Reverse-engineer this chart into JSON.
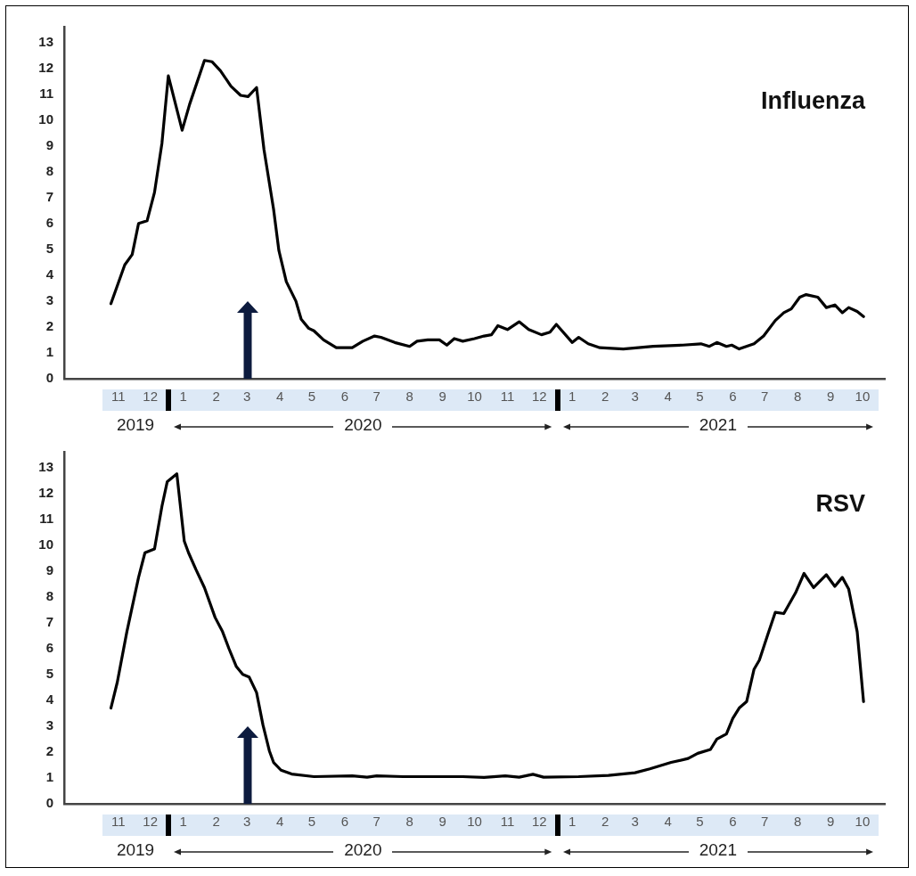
{
  "chart_data": [
    {
      "type": "line",
      "title": "Influenza",
      "color": "#000000",
      "marker": "none",
      "x": [
        "2019-11-08",
        "2019-11-21",
        "2019-11-28",
        "2019-12-04",
        "2019-12-12",
        "2019-12-19",
        "2019-12-26",
        "2020-01-01",
        "2020-01-14",
        "2020-01-21",
        "2020-02-04",
        "2020-02-11",
        "2020-02-19",
        "2020-02-29",
        "2020-03-09",
        "2020-03-16",
        "2020-03-24",
        "2020-03-31",
        "2020-04-09",
        "2020-04-14",
        "2020-04-21",
        "2020-04-30",
        "2020-05-05",
        "2020-05-12",
        "2020-05-17",
        "2020-05-26",
        "2020-06-07",
        "2020-06-22",
        "2020-07-02",
        "2020-07-13",
        "2020-07-19",
        "2020-08-01",
        "2020-08-15",
        "2020-08-22",
        "2020-09-01",
        "2020-09-12",
        "2020-09-19",
        "2020-09-26",
        "2020-10-04",
        "2020-10-15",
        "2020-10-24",
        "2020-10-31",
        "2020-11-06",
        "2020-11-15",
        "2020-11-26",
        "2020-12-05",
        "2020-12-17",
        "2020-12-25",
        "2020-12-31",
        "2021-01-15",
        "2021-01-21",
        "2021-01-30",
        "2021-02-10",
        "2021-03-04",
        "2021-04-01",
        "2021-04-29",
        "2021-05-16",
        "2021-05-24",
        "2021-05-31",
        "2021-06-09",
        "2021-06-14",
        "2021-06-21",
        "2021-07-05",
        "2021-07-14",
        "2021-07-25",
        "2021-08-02",
        "2021-08-09",
        "2021-08-17",
        "2021-08-23",
        "2021-09-03",
        "2021-09-11",
        "2021-09-19",
        "2021-09-26",
        "2021-10-02",
        "2021-10-10",
        "2021-10-16"
      ],
      "values": [
        2.9,
        4.4,
        4.8,
        6.0,
        6.1,
        7.2,
        9.1,
        11.7,
        9.6,
        10.6,
        12.3,
        12.25,
        11.9,
        11.3,
        10.95,
        10.9,
        11.25,
        8.85,
        6.55,
        4.95,
        3.75,
        3.0,
        2.3,
        1.95,
        1.85,
        1.5,
        1.2,
        1.2,
        1.45,
        1.65,
        1.6,
        1.4,
        1.25,
        1.45,
        1.5,
        1.5,
        1.3,
        1.55,
        1.45,
        1.55,
        1.65,
        1.7,
        2.05,
        1.9,
        2.2,
        1.9,
        1.7,
        1.8,
        2.1,
        1.4,
        1.6,
        1.35,
        1.2,
        1.15,
        1.25,
        1.3,
        1.35,
        1.25,
        1.4,
        1.25,
        1.3,
        1.15,
        1.35,
        1.65,
        2.25,
        2.55,
        2.7,
        3.15,
        3.25,
        3.15,
        2.75,
        2.85,
        2.55,
        2.75,
        2.6,
        2.4
      ],
      "xlim": [
        "2019-09-25",
        "2021-11-05"
      ],
      "ylim": [
        0,
        13.6
      ],
      "xticks": [
        {
          "value": "2019-11-15",
          "label": "11"
        },
        {
          "value": "2019-12-15",
          "label": "12"
        },
        {
          "value": "2020-01-15",
          "label": "1"
        },
        {
          "value": "2020-02-15",
          "label": "2"
        },
        {
          "value": "2020-03-15",
          "label": "3"
        },
        {
          "value": "2020-04-15",
          "label": "4"
        },
        {
          "value": "2020-05-15",
          "label": "5"
        },
        {
          "value": "2020-06-15",
          "label": "6"
        },
        {
          "value": "2020-07-15",
          "label": "7"
        },
        {
          "value": "2020-08-15",
          "label": "8"
        },
        {
          "value": "2020-09-15",
          "label": "9"
        },
        {
          "value": "2020-10-15",
          "label": "10"
        },
        {
          "value": "2020-11-15",
          "label": "11"
        },
        {
          "value": "2020-12-15",
          "label": "12"
        },
        {
          "value": "2021-01-15",
          "label": "1"
        },
        {
          "value": "2021-02-15",
          "label": "2"
        },
        {
          "value": "2021-03-15",
          "label": "3"
        },
        {
          "value": "2021-04-15",
          "label": "4"
        },
        {
          "value": "2021-05-15",
          "label": "5"
        },
        {
          "value": "2021-06-15",
          "label": "6"
        },
        {
          "value": "2021-07-15",
          "label": "7"
        },
        {
          "value": "2021-08-15",
          "label": "8"
        },
        {
          "value": "2021-09-15",
          "label": "9"
        },
        {
          "value": "2021-10-15",
          "label": "10"
        }
      ],
      "yticks": [
        0,
        1,
        2,
        3,
        4,
        5,
        6,
        7,
        8,
        9,
        10,
        11,
        12,
        13
      ],
      "annotations": [
        "2019",
        "2020",
        "2021"
      ]
    },
    {
      "type": "line",
      "title": "RSV",
      "color": "#000000",
      "marker": "none",
      "x": [
        "2019-11-08",
        "2019-11-14",
        "2019-11-23",
        "2019-12-04",
        "2019-12-10",
        "2019-12-19",
        "2019-12-26",
        "2019-12-31",
        "2020-01-09",
        "2020-01-16",
        "2020-01-20",
        "2020-01-27",
        "2020-02-04",
        "2020-02-14",
        "2020-02-21",
        "2020-02-27",
        "2020-03-05",
        "2020-03-11",
        "2020-03-17",
        "2020-03-24",
        "2020-03-30",
        "2020-04-05",
        "2020-04-09",
        "2020-04-16",
        "2020-04-26",
        "2020-05-17",
        "2020-06-22",
        "2020-07-06",
        "2020-07-15",
        "2020-08-09",
        "2020-09-07",
        "2020-10-04",
        "2020-10-24",
        "2020-11-13",
        "2020-11-26",
        "2020-12-09",
        "2020-12-19",
        "2021-01-21",
        "2021-02-18",
        "2021-03-15",
        "2021-03-29",
        "2021-04-18",
        "2021-05-04",
        "2021-05-13",
        "2021-05-25",
        "2021-05-31",
        "2021-06-09",
        "2021-06-15",
        "2021-06-21",
        "2021-06-28",
        "2021-07-05",
        "2021-07-10",
        "2021-07-18",
        "2021-07-25",
        "2021-08-02",
        "2021-08-13",
        "2021-08-21",
        "2021-08-30",
        "2021-09-11",
        "2021-09-19",
        "2021-09-26",
        "2021-10-02",
        "2021-10-10",
        "2021-10-16"
      ],
      "values": [
        3.7,
        4.7,
        6.65,
        8.75,
        9.7,
        9.85,
        11.5,
        12.45,
        12.75,
        10.15,
        9.7,
        9.05,
        8.35,
        7.2,
        6.65,
        6.0,
        5.3,
        5.0,
        4.9,
        4.3,
        3.05,
        2.05,
        1.6,
        1.3,
        1.15,
        1.05,
        1.08,
        1.03,
        1.08,
        1.05,
        1.05,
        1.05,
        1.02,
        1.08,
        1.03,
        1.14,
        1.03,
        1.05,
        1.1,
        1.2,
        1.35,
        1.6,
        1.75,
        1.95,
        2.1,
        2.5,
        2.7,
        3.3,
        3.7,
        3.95,
        5.2,
        5.55,
        6.55,
        7.4,
        7.35,
        8.15,
        8.9,
        8.35,
        8.85,
        8.4,
        8.75,
        8.3,
        6.65,
        3.95
      ],
      "xlim": [
        "2019-09-25",
        "2021-11-05"
      ],
      "ylim": [
        0,
        13.6
      ],
      "xticks": [
        {
          "value": "2019-11-15",
          "label": "11"
        },
        {
          "value": "2019-12-15",
          "label": "12"
        },
        {
          "value": "2020-01-15",
          "label": "1"
        },
        {
          "value": "2020-02-15",
          "label": "2"
        },
        {
          "value": "2020-03-15",
          "label": "3"
        },
        {
          "value": "2020-04-15",
          "label": "4"
        },
        {
          "value": "2020-05-15",
          "label": "5"
        },
        {
          "value": "2020-06-15",
          "label": "6"
        },
        {
          "value": "2020-07-15",
          "label": "7"
        },
        {
          "value": "2020-08-15",
          "label": "8"
        },
        {
          "value": "2020-09-15",
          "label": "9"
        },
        {
          "value": "2020-10-15",
          "label": "10"
        },
        {
          "value": "2020-11-15",
          "label": "11"
        },
        {
          "value": "2020-12-15",
          "label": "12"
        },
        {
          "value": "2021-01-15",
          "label": "1"
        },
        {
          "value": "2021-02-15",
          "label": "2"
        },
        {
          "value": "2021-03-15",
          "label": "3"
        },
        {
          "value": "2021-04-15",
          "label": "4"
        },
        {
          "value": "2021-05-15",
          "label": "5"
        },
        {
          "value": "2021-06-15",
          "label": "6"
        },
        {
          "value": "2021-07-15",
          "label": "7"
        },
        {
          "value": "2021-08-15",
          "label": "8"
        },
        {
          "value": "2021-09-15",
          "label": "9"
        },
        {
          "value": "2021-10-15",
          "label": "10"
        }
      ],
      "yticks": [
        0,
        1,
        2,
        3,
        4,
        5,
        6,
        7,
        8,
        9,
        10,
        11,
        12,
        13
      ],
      "annotations": [
        "2019",
        "2020",
        "2021"
      ]
    }
  ]
}
